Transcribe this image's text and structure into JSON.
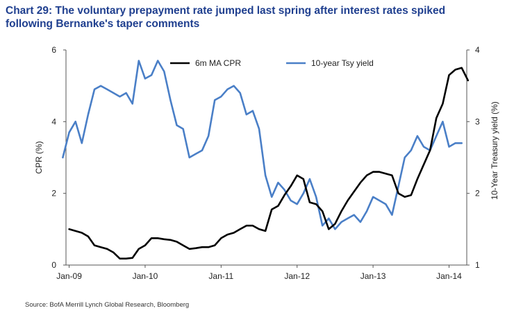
{
  "title_line1": "Chart 29: The voluntary prepayment rate jumped last spring after interest rates spiked",
  "title_line2": "following Bernanke's taper comments",
  "source": "Source: BofA Merrill Lynch Global Research, Bloomberg",
  "colors": {
    "title": "#1f3f8f",
    "cpr": "#000000",
    "tsy": "#4a7fc7"
  },
  "chart_data": {
    "type": "line",
    "x_tick_labels": [
      "Jan-09",
      "Jan-10",
      "Jan-11",
      "Jan-12",
      "Jan-13",
      "Jan-14"
    ],
    "xlim": [
      "2009-01",
      "2014-03"
    ],
    "ylabel_left": "CPR (%)",
    "ylabel_right": "10-Year Treasury yield (%)",
    "ylim_left": [
      0,
      6
    ],
    "ylim_right": [
      1,
      4
    ],
    "yticks_left": [
      "0",
      "2",
      "4",
      "6"
    ],
    "yticks_right": [
      "1",
      "2",
      "3",
      "4"
    ],
    "legend_position": "top-right",
    "grid": false,
    "series": [
      {
        "name": "6m MA CPR",
        "axis": "left",
        "values": [
          [
            "2009-01",
            1.0
          ],
          [
            "2009-02",
            0.95
          ],
          [
            "2009-03",
            0.9
          ],
          [
            "2009-04",
            0.8
          ],
          [
            "2009-05",
            0.55
          ],
          [
            "2009-06",
            0.5
          ],
          [
            "2009-07",
            0.45
          ],
          [
            "2009-08",
            0.35
          ],
          [
            "2009-09",
            0.18
          ],
          [
            "2009-10",
            0.18
          ],
          [
            "2009-11",
            0.2
          ],
          [
            "2009-12",
            0.45
          ],
          [
            "2010-01",
            0.55
          ],
          [
            "2010-02",
            0.75
          ],
          [
            "2010-03",
            0.75
          ],
          [
            "2010-04",
            0.72
          ],
          [
            "2010-05",
            0.7
          ],
          [
            "2010-06",
            0.65
          ],
          [
            "2010-07",
            0.55
          ],
          [
            "2010-08",
            0.45
          ],
          [
            "2010-09",
            0.47
          ],
          [
            "2010-10",
            0.5
          ],
          [
            "2010-11",
            0.5
          ],
          [
            "2010-12",
            0.55
          ],
          [
            "2011-01",
            0.75
          ],
          [
            "2011-02",
            0.85
          ],
          [
            "2011-03",
            0.9
          ],
          [
            "2011-04",
            1.0
          ],
          [
            "2011-05",
            1.1
          ],
          [
            "2011-06",
            1.1
          ],
          [
            "2011-07",
            1.0
          ],
          [
            "2011-08",
            0.95
          ],
          [
            "2011-09",
            1.55
          ],
          [
            "2011-10",
            1.65
          ],
          [
            "2011-11",
            1.95
          ],
          [
            "2011-12",
            2.2
          ],
          [
            "2012-01",
            2.5
          ],
          [
            "2012-02",
            2.4
          ],
          [
            "2012-03",
            1.75
          ],
          [
            "2012-04",
            1.7
          ],
          [
            "2012-05",
            1.5
          ],
          [
            "2012-06",
            1.0
          ],
          [
            "2012-07",
            1.15
          ],
          [
            "2012-08",
            1.5
          ],
          [
            "2012-09",
            1.8
          ],
          [
            "2012-10",
            2.05
          ],
          [
            "2012-11",
            2.3
          ],
          [
            "2012-12",
            2.5
          ],
          [
            "2013-01",
            2.6
          ],
          [
            "2013-02",
            2.6
          ],
          [
            "2013-03",
            2.55
          ],
          [
            "2013-04",
            2.5
          ],
          [
            "2013-05",
            2.0
          ],
          [
            "2013-06",
            1.9
          ],
          [
            "2013-07",
            1.95
          ],
          [
            "2013-08",
            2.4
          ],
          [
            "2013-09",
            2.8
          ],
          [
            "2013-10",
            3.2
          ],
          [
            "2013-11",
            4.1
          ],
          [
            "2013-12",
            4.5
          ],
          [
            "2014-01",
            5.3
          ],
          [
            "2014-02",
            5.45
          ],
          [
            "2014-03",
            5.5
          ],
          [
            "2014-04",
            5.15
          ]
        ]
      },
      {
        "name": "10-year Tsy yield",
        "axis": "right",
        "values": [
          [
            "2008-12",
            2.5
          ],
          [
            "2009-01",
            2.85
          ],
          [
            "2009-02",
            3.0
          ],
          [
            "2009-03",
            2.7
          ],
          [
            "2009-04",
            3.1
          ],
          [
            "2009-05",
            3.45
          ],
          [
            "2009-06",
            3.5
          ],
          [
            "2009-07",
            3.45
          ],
          [
            "2009-08",
            3.4
          ],
          [
            "2009-09",
            3.35
          ],
          [
            "2009-10",
            3.4
          ],
          [
            "2009-11",
            3.25
          ],
          [
            "2009-12",
            3.85
          ],
          [
            "2010-01",
            3.6
          ],
          [
            "2010-02",
            3.65
          ],
          [
            "2010-03",
            3.85
          ],
          [
            "2010-04",
            3.7
          ],
          [
            "2010-05",
            3.3
          ],
          [
            "2010-06",
            2.95
          ],
          [
            "2010-07",
            2.9
          ],
          [
            "2010-08",
            2.5
          ],
          [
            "2010-09",
            2.55
          ],
          [
            "2010-10",
            2.6
          ],
          [
            "2010-11",
            2.8
          ],
          [
            "2010-12",
            3.3
          ],
          [
            "2011-01",
            3.35
          ],
          [
            "2011-02",
            3.45
          ],
          [
            "2011-03",
            3.5
          ],
          [
            "2011-04",
            3.4
          ],
          [
            "2011-05",
            3.1
          ],
          [
            "2011-06",
            3.15
          ],
          [
            "2011-07",
            2.9
          ],
          [
            "2011-08",
            2.25
          ],
          [
            "2011-09",
            1.95
          ],
          [
            "2011-10",
            2.15
          ],
          [
            "2011-11",
            2.05
          ],
          [
            "2011-12",
            1.9
          ],
          [
            "2012-01",
            1.85
          ],
          [
            "2012-02",
            2.0
          ],
          [
            "2012-03",
            2.2
          ],
          [
            "2012-04",
            1.95
          ],
          [
            "2012-05",
            1.55
          ],
          [
            "2012-06",
            1.65
          ],
          [
            "2012-07",
            1.5
          ],
          [
            "2012-08",
            1.6
          ],
          [
            "2012-09",
            1.65
          ],
          [
            "2012-10",
            1.7
          ],
          [
            "2012-11",
            1.6
          ],
          [
            "2012-12",
            1.75
          ],
          [
            "2013-01",
            1.95
          ],
          [
            "2013-02",
            1.9
          ],
          [
            "2013-03",
            1.85
          ],
          [
            "2013-04",
            1.7
          ],
          [
            "2013-05",
            2.1
          ],
          [
            "2013-06",
            2.5
          ],
          [
            "2013-07",
            2.6
          ],
          [
            "2013-08",
            2.8
          ],
          [
            "2013-09",
            2.65
          ],
          [
            "2013-10",
            2.6
          ],
          [
            "2013-11",
            2.8
          ],
          [
            "2013-12",
            3.0
          ],
          [
            "2014-01",
            2.65
          ],
          [
            "2014-02",
            2.7
          ],
          [
            "2014-03",
            2.7
          ]
        ]
      }
    ]
  }
}
